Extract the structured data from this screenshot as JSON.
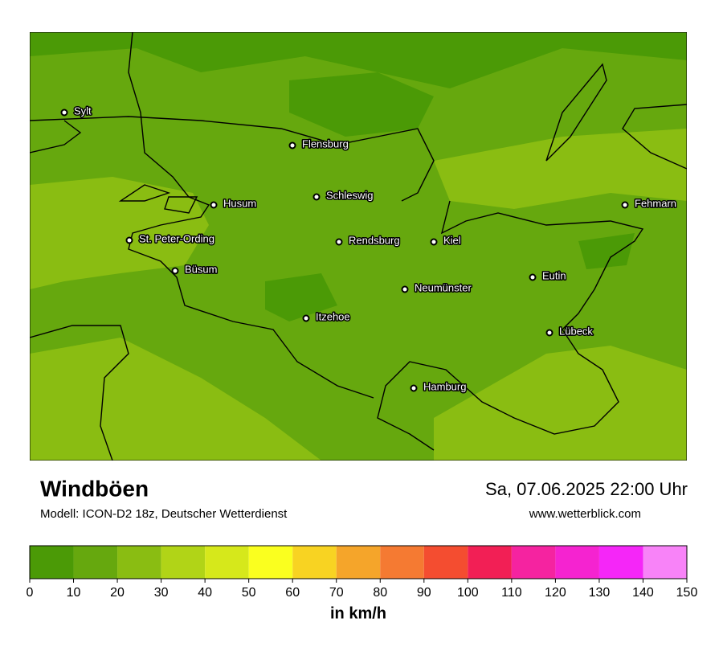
{
  "header": {
    "title": "Windböen",
    "model": "Modell: ICON-D2 18z, Deutscher Wetterdienst",
    "datetime": "Sa, 07.06.2025 22:00 Uhr",
    "website": "www.wetterblick.com"
  },
  "map": {
    "cities": [
      "Sylt",
      "Flensburg",
      "Schleswig",
      "Husum",
      "Fehmarn",
      "St. Peter-Ording",
      "Rendsburg",
      "Kiel",
      "Büsum",
      "Eutin",
      "Neumünster",
      "Itzehoe",
      "Lübeck",
      "Hamburg"
    ]
  },
  "legend": {
    "ticks": [
      0,
      10,
      20,
      30,
      40,
      50,
      60,
      70,
      80,
      90,
      100,
      110,
      120,
      130,
      140,
      150
    ],
    "colors": [
      "#4b9a06",
      "#66a80e",
      "#8abd12",
      "#b1d417",
      "#d6e81b",
      "#faff1f",
      "#f8d322",
      "#f5a52a",
      "#f57a32",
      "#f44d30",
      "#f21f55",
      "#f523a0",
      "#f523d0",
      "#f526f8",
      "#f883f8"
    ],
    "unit": "in km/h"
  }
}
